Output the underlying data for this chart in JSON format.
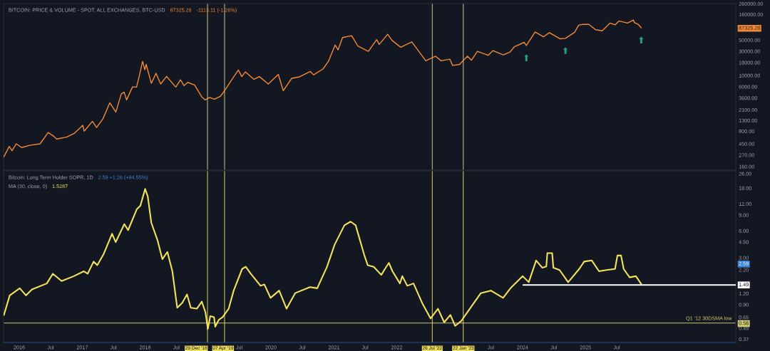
{
  "chart_data": [
    {
      "type": "line",
      "title": "BITCOIN: PRICE & VOLUME - SPOT, ALL EXCHANGES, BTC-USD",
      "log": true,
      "tick_labels": "y",
      "xlim": [
        "2015-10-02",
        "2027-05-23"
      ],
      "ylim": [
        136,
        262000
      ],
      "yticks": [
        {
          "value": 260000,
          "label": "260000.00"
        },
        {
          "value": 160000,
          "label": "160000.00"
        },
        {
          "value": 87325.28,
          "label": "87325.28"
        },
        {
          "value": 50000,
          "label": "50000.00"
        },
        {
          "value": 30000,
          "label": "30000.00"
        },
        {
          "value": 18000,
          "label": "18000.00"
        },
        {
          "value": 10000,
          "label": "10000.00"
        },
        {
          "value": 6000,
          "label": "6000.00"
        },
        {
          "value": 3600,
          "label": "3600.00"
        },
        {
          "value": 2100,
          "label": "2100.00"
        },
        {
          "value": 1300,
          "label": "1300.00"
        },
        {
          "value": 800,
          "label": "800.00"
        },
        {
          "value": 450,
          "label": "450.00"
        },
        {
          "value": 270,
          "label": "270.00"
        },
        {
          "value": 160,
          "label": "160.00"
        }
      ],
      "series": [
        {
          "color": "#f48a35",
          "x": [
            "2015-10-04",
            "2015-11-04",
            "2015-11-20",
            "2015-12-15",
            "2016-01-15",
            "2016-03-01",
            "2016-05-01",
            "2016-06-17",
            "2016-07-15",
            "2016-08-05",
            "2016-10-01",
            "2016-11-15",
            "2017-01-04",
            "2017-01-12",
            "2017-03-01",
            "2017-03-25",
            "2017-05-01",
            "2017-06-10",
            "2017-07-15",
            "2017-08-15",
            "2017-09-01",
            "2017-09-15",
            "2017-10-20",
            "2017-11-12",
            "2017-11-28",
            "2017-12-17",
            "2017-12-30",
            "2018-01-07",
            "2018-02-06",
            "2018-03-05",
            "2018-04-01",
            "2018-05-05",
            "2018-06-28",
            "2018-07-25",
            "2018-08-15",
            "2018-09-05",
            "2018-10-15",
            "2018-11-25",
            "2018-12-15",
            "2019-01-10",
            "2019-02-07",
            "2019-03-15",
            "2019-04-10",
            "2019-05-15",
            "2019-06-26",
            "2019-07-16",
            "2019-08-06",
            "2019-09-25",
            "2019-10-26",
            "2019-12-17",
            "2020-02-13",
            "2020-03-13",
            "2020-05-01",
            "2020-06-15",
            "2020-08-17",
            "2020-09-05",
            "2020-10-30",
            "2020-11-30",
            "2021-01-08",
            "2021-01-25",
            "2021-02-20",
            "2021-04-14",
            "2021-05-20",
            "2021-07-20",
            "2021-09-06",
            "2021-09-21",
            "2021-11-09",
            "2021-12-05",
            "2022-01-24",
            "2022-03-29",
            "2022-05-12",
            "2022-06-18",
            "2022-08-14",
            "2022-09-15",
            "2022-11-05",
            "2022-11-21",
            "2022-12-31",
            "2023-02-15",
            "2023-03-10",
            "2023-04-14",
            "2023-06-15",
            "2023-07-14",
            "2023-09-11",
            "2023-10-20",
            "2023-11-15",
            "2024-01-10",
            "2024-01-23",
            "2024-03-14",
            "2024-05-01",
            "2024-06-05",
            "2024-08-05",
            "2024-09-06",
            "2024-10-29",
            "2024-11-22",
            "2024-12-17",
            "2025-01-20",
            "2025-02-28",
            "2025-04-08",
            "2025-05-22",
            "2025-06-22",
            "2025-07-14",
            "2025-09-01",
            "2025-10-06",
            "2025-10-11",
            "2025-11-04",
            "2025-11-20"
          ],
          "values": [
            250,
            400,
            330,
            450,
            380,
            420,
            450,
            750,
            650,
            560,
            610,
            720,
            1040,
            800,
            1250,
            940,
            1400,
            2900,
            1900,
            4300,
            4700,
            3300,
            6000,
            5900,
            9800,
            19000,
            13000,
            16500,
            7000,
            11000,
            6800,
            9600,
            5900,
            8200,
            6300,
            7300,
            6500,
            3800,
            3300,
            3700,
            3400,
            3900,
            5200,
            7900,
            12800,
            9500,
            11800,
            8400,
            9500,
            6800,
            10500,
            5000,
            8800,
            9400,
            12000,
            10300,
            13500,
            19000,
            40000,
            32000,
            56000,
            61000,
            38000,
            30000,
            51000,
            41000,
            65000,
            49000,
            36000,
            46000,
            29000,
            19500,
            24000,
            19500,
            21000,
            15800,
            16500,
            24000,
            20000,
            30000,
            25000,
            31000,
            25500,
            29000,
            37000,
            45000,
            39000,
            72000,
            58000,
            70000,
            53000,
            54000,
            71000,
            98000,
            102000,
            102000,
            80000,
            76000,
            108000,
            100000,
            119000,
            108000,
            124000,
            111000,
            101000,
            87325.28
          ]
        }
      ],
      "ref_lines": [
        {
          "axis": "x",
          "value": "2018-12-29",
          "color": "#cfc98a"
        },
        {
          "axis": "x",
          "value": "2019-04-07",
          "color": "#cfc98a"
        },
        {
          "axis": "x",
          "value": "2022-07-26",
          "color": "#cfc98a"
        },
        {
          "axis": "x",
          "value": "2023-01-22",
          "color": "#cfc98a"
        }
      ],
      "annotations": [
        "87325.28",
        "-1113.11 (-1.26%)",
        {
          "text": "⬆",
          "x": "2024-01-23",
          "y": 39000
        },
        {
          "text": "⬆",
          "x": "2024-09-06",
          "y": 54000
        },
        {
          "text": "⬆",
          "x": "2025-11-20",
          "y": 87325.28
        }
      ]
    },
    {
      "type": "line",
      "title": "Bitcoin: Long Term Holder SOPR, 1D",
      "subtitle": "MA (30, close, 0)",
      "log": true,
      "xlim": [
        "2015-10-02",
        "2027-05-23"
      ],
      "xticks": [
        {
          "value": "2016-01-01",
          "label": "2016"
        },
        {
          "value": "2016-07-01",
          "label": "Jul"
        },
        {
          "value": "2017-01-01",
          "label": "2017"
        },
        {
          "value": "2017-07-01",
          "label": "Jul"
        },
        {
          "value": "2018-01-01",
          "label": "2018"
        },
        {
          "value": "2018-07-01",
          "label": "Jul"
        },
        {
          "value": "2019-07-01",
          "label": "Jul"
        },
        {
          "value": "2020-01-01",
          "label": "2020"
        },
        {
          "value": "2020-07-01",
          "label": "Jul"
        },
        {
          "value": "2021-01-01",
          "label": "2021"
        },
        {
          "value": "2021-07-01",
          "label": "Jul"
        },
        {
          "value": "2022-01-01",
          "label": "2022"
        },
        {
          "value": "2023-07-01",
          "label": "Jul"
        },
        {
          "value": "2024-01-01",
          "label": "2024"
        },
        {
          "value": "2024-07-01",
          "label": "Jul"
        },
        {
          "value": "2025-01-01",
          "label": "2025"
        },
        {
          "value": "2025-07-01",
          "label": "Jul"
        }
      ],
      "ylim": [
        0.34,
        28
      ],
      "yticks": [
        {
          "value": 26,
          "label": "26.00"
        },
        {
          "value": 18,
          "label": "18.00"
        },
        {
          "value": 12,
          "label": "12.00"
        },
        {
          "value": 9,
          "label": "9.00"
        },
        {
          "value": 6,
          "label": "6.00"
        },
        {
          "value": 4.5,
          "label": "4.50"
        },
        {
          "value": 3,
          "label": "3.00"
        },
        {
          "value": 2.59,
          "label": "2.59"
        },
        {
          "value": 2.2,
          "label": "2.20"
        },
        {
          "value": 1.2,
          "label": "1.20"
        },
        {
          "value": 0.9,
          "label": "0.90"
        },
        {
          "value": 0.65,
          "label": "0.65"
        },
        {
          "value": 0.56,
          "label": "0.56"
        },
        {
          "value": 0.49,
          "label": "0.49"
        },
        {
          "value": 0.37,
          "label": "0.37"
        }
      ],
      "series": [
        {
          "color": "#f3e35a",
          "x": [
            "2015-10-04",
            "2015-11-07",
            "2016-01-04",
            "2016-02-09",
            "2016-03-15",
            "2016-06-09",
            "2016-07-14",
            "2016-09-03",
            "2016-11-13",
            "2017-01-10",
            "2017-02-01",
            "2017-03-08",
            "2017-03-29",
            "2017-05-04",
            "2017-06-23",
            "2017-07-14",
            "2017-09-02",
            "2017-09-24",
            "2017-11-13",
            "2017-12-04",
            "2018-01-01",
            "2018-01-16",
            "2018-02-06",
            "2018-03-13",
            "2018-04-11",
            "2018-05-10",
            "2018-06-08",
            "2018-07-06",
            "2018-08-04",
            "2018-09-01",
            "2018-09-23",
            "2018-10-28",
            "2018-11-26",
            "2018-12-17",
            "2018-12-31",
            "2019-01-14",
            "2019-02-05",
            "2019-02-12",
            "2019-03-05",
            "2019-03-26",
            "2019-05-01",
            "2019-05-30",
            "2019-07-18",
            "2019-08-08",
            "2019-09-06",
            "2019-11-02",
            "2019-11-24",
            "2019-12-30",
            "2020-02-18",
            "2020-04-01",
            "2020-05-21",
            "2020-08-15",
            "2020-09-26",
            "2020-11-22",
            "2021-01-05",
            "2021-03-03",
            "2021-04-08",
            "2021-05-07",
            "2021-06-25",
            "2021-07-16",
            "2021-08-20",
            "2021-10-03",
            "2021-10-24",
            "2021-11-16",
            "2021-12-07",
            "2022-01-19",
            "2022-02-02",
            "2022-03-03",
            "2022-04-08",
            "2022-05-28",
            "2022-07-16",
            "2022-08-28",
            "2022-10-03",
            "2022-11-08",
            "2022-12-06",
            "2023-01-10",
            "2023-03-01",
            "2023-05-04",
            "2023-07-01",
            "2023-09-10",
            "2023-10-23",
            "2024-01-02",
            "2024-02-06",
            "2024-03-20",
            "2024-04-25",
            "2024-05-18",
            "2024-05-24",
            "2024-06-21",
            "2024-06-28",
            "2024-08-03",
            "2024-09-22",
            "2024-11-25",
            "2024-12-24",
            "2025-02-06",
            "2025-03-20",
            "2025-05-02",
            "2025-06-21",
            "2025-07-05",
            "2025-07-26",
            "2025-08-10",
            "2025-09-14",
            "2025-10-20",
            "2025-11-20"
          ],
          "values": [
            0.69,
            1.14,
            1.37,
            1.14,
            1.33,
            1.55,
            1.99,
            1.65,
            1.87,
            2.12,
            1.99,
            2.72,
            2.48,
            3.27,
            5.56,
            4.48,
            7.13,
            6.1,
            10.4,
            11.4,
            17.6,
            14.6,
            7.36,
            4.76,
            2.89,
            3.49,
            2.12,
            0.83,
            0.94,
            1.17,
            0.83,
            0.81,
            0.97,
            0.74,
            0.48,
            0.67,
            0.65,
            0.51,
            0.61,
            0.65,
            0.81,
            1.29,
            2.25,
            2.38,
            1.99,
            1.46,
            1.51,
            1.07,
            1.29,
            0.81,
            1.21,
            1.41,
            1.37,
            2.38,
            4.2,
            6.92,
            7.6,
            6.92,
            3.27,
            2.48,
            2.38,
            1.93,
            2.25,
            2.63,
            2.12,
            1.55,
            1.87,
            1.46,
            1.55,
            0.94,
            0.63,
            0.81,
            0.57,
            0.69,
            0.52,
            0.59,
            0.81,
            1.21,
            1.29,
            1.07,
            1.37,
            1.87,
            1.6,
            2.8,
            2.32,
            2.4,
            3.38,
            3.38,
            2.32,
            2.19,
            1.6,
            2.25,
            2.72,
            2.8,
            2.12,
            2.19,
            2.25,
            3.18,
            3.18,
            2.25,
            1.81,
            1.87,
            1.5287
          ]
        },
        {
          "color": "#ffffff",
          "x": [
            "2024-01-05",
            "2027-05-23"
          ],
          "values": [
            1.49,
            1.49
          ],
          "value_labels": [
            null,
            "1.49"
          ]
        }
      ],
      "ref_lines": [
        {
          "axis": "y",
          "value": 0.56,
          "label": "Q1 '12 30DSMA low",
          "color": "#d2ca72"
        },
        {
          "axis": "x",
          "value": "2018-12-29",
          "label": "29 Dec '18",
          "color": "#e8dc5a"
        },
        {
          "axis": "x",
          "value": "2019-04-07",
          "label": "07 Apr '19",
          "color": "#e8dc5a"
        },
        {
          "axis": "x",
          "value": "2022-07-26",
          "label": "26 Jul '22",
          "color": "#e8dc5a"
        },
        {
          "axis": "x",
          "value": "2023-01-22",
          "label": "22 Jan '23",
          "color": "#e8dc5a"
        }
      ],
      "annotations": [
        "2.59 +1.26 (+94.55%)",
        "1.5287"
      ]
    }
  ]
}
